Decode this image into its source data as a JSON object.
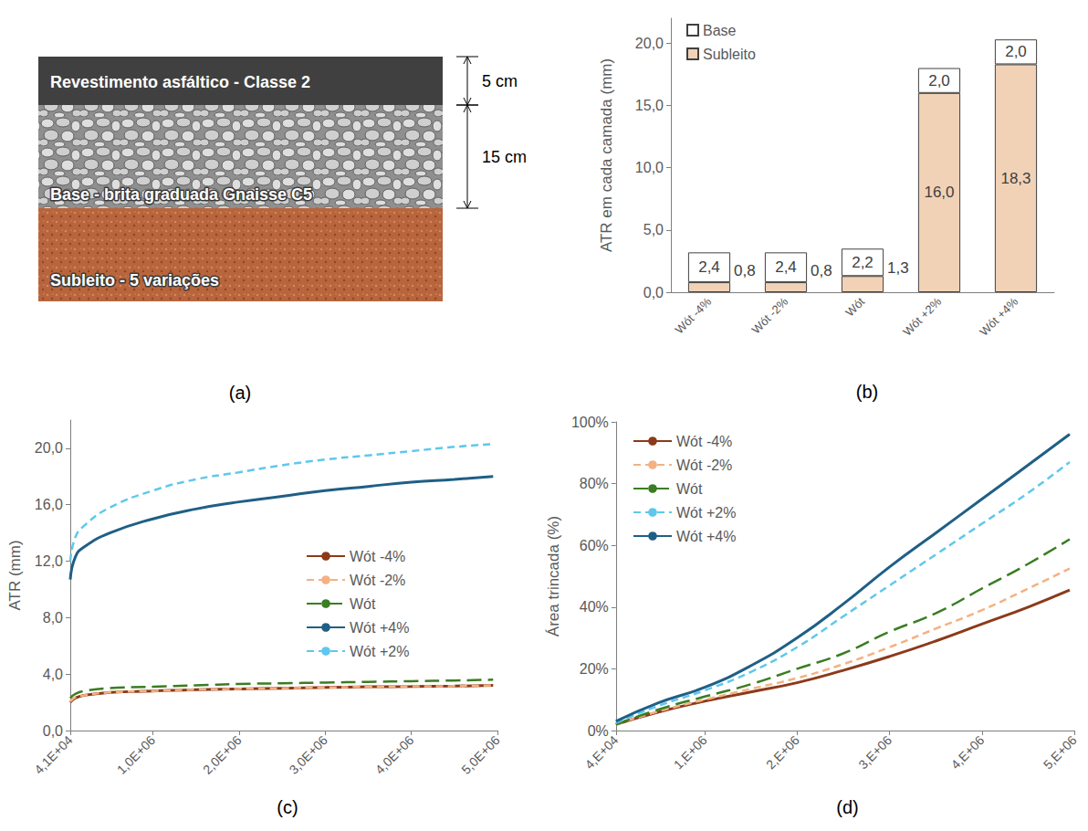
{
  "diagram": {
    "label": "(a)",
    "layers": [
      {
        "name": "Revestimento asfáltico - Classe 2",
        "thickness": "5 cm"
      },
      {
        "name": "Base - brita graduada Gnaisse C5",
        "thickness": "15 cm"
      },
      {
        "name": "Subleito - 5 variações"
      }
    ]
  },
  "chart_data": [
    {
      "type": "bar",
      "title": "(b)",
      "y_label": "ATR em cada camada (mm)",
      "categories": [
        "Wót -4%",
        "Wót -2%",
        "Wót",
        "Wót +2%",
        "Wót +4%"
      ],
      "stacked": true,
      "data_labels": true,
      "legend": "upper left",
      "grid": false,
      "ylim": [
        0,
        22
      ],
      "yticks": [
        {
          "value": 0,
          "label": "0,0"
        },
        {
          "value": 5,
          "label": "5,0"
        },
        {
          "value": 10,
          "label": "10,0"
        },
        {
          "value": 15,
          "label": "15,0"
        },
        {
          "value": 20,
          "label": "20,0"
        }
      ],
      "series": [
        {
          "name": "Subleito",
          "color": "#f2d2b6",
          "values": [
            0.8,
            0.8,
            1.3,
            16.0,
            18.3
          ],
          "value_labels": [
            "0,8",
            "0,8",
            "1,3",
            "16,0",
            "18,3"
          ]
        },
        {
          "name": "Base",
          "color": "#ffffff",
          "values": [
            2.4,
            2.4,
            2.2,
            2.0,
            2.0
          ],
          "value_labels": [
            "2,4",
            "2,4",
            "2,2",
            "2,0",
            "2,0"
          ]
        }
      ]
    },
    {
      "type": "line",
      "title": "(c)",
      "y_label": "ATR (mm)",
      "legend": "center right",
      "grid": false,
      "x": [
        41000,
        100000,
        200000,
        500000,
        1000000,
        1500000,
        2000000,
        2500000,
        3000000,
        3500000,
        4000000,
        4500000,
        4950000
      ],
      "xlim": [
        41000,
        5000000
      ],
      "xticks": [
        {
          "value": 41000,
          "label": "4,1E+04"
        },
        {
          "value": 1000000,
          "label": "1,0E+06"
        },
        {
          "value": 2000000,
          "label": "2,0E+06"
        },
        {
          "value": 3000000,
          "label": "3,0E+06"
        },
        {
          "value": 4000000,
          "label": "4,0E+06"
        },
        {
          "value": 5000000,
          "label": "5,0E+06"
        }
      ],
      "ylim": [
        0,
        22
      ],
      "yticks": [
        {
          "value": 0,
          "label": "0,0"
        },
        {
          "value": 4,
          "label": "4,0"
        },
        {
          "value": 8,
          "label": "8,0"
        },
        {
          "value": 12,
          "label": "12,0"
        },
        {
          "value": 16,
          "label": "16,0"
        },
        {
          "value": 20,
          "label": "20,0"
        }
      ],
      "series": [
        {
          "name": "Wót -4%",
          "color": "#8b3a1a",
          "line_style": "solid",
          "values": [
            2.0,
            2.3,
            2.5,
            2.7,
            2.8,
            2.9,
            2.95,
            3.0,
            3.05,
            3.1,
            3.12,
            3.15,
            3.2
          ]
        },
        {
          "name": "Wót -2%",
          "color": "#f4b183",
          "line_style": "dashed",
          "values": [
            2.05,
            2.35,
            2.5,
            2.7,
            2.8,
            2.9,
            2.95,
            3.0,
            3.05,
            3.1,
            3.13,
            3.15,
            3.2
          ]
        },
        {
          "name": "Wót",
          "color": "#3a7d22",
          "line_style": "longdash",
          "values": [
            2.3,
            2.6,
            2.8,
            3.0,
            3.1,
            3.2,
            3.3,
            3.35,
            3.4,
            3.45,
            3.5,
            3.55,
            3.6
          ]
        },
        {
          "name": "Wót +4%",
          "color": "#1f5f86",
          "line_style": "solid",
          "values": [
            10.7,
            12.3,
            13.0,
            14.0,
            15.0,
            15.7,
            16.2,
            16.6,
            17.0,
            17.3,
            17.6,
            17.8,
            18.0
          ]
        },
        {
          "name": "Wót +2%",
          "color": "#5ec8ec",
          "line_style": "dashed",
          "values": [
            12.0,
            13.7,
            14.5,
            15.8,
            17.0,
            17.8,
            18.3,
            18.8,
            19.2,
            19.5,
            19.8,
            20.1,
            20.3
          ]
        }
      ]
    },
    {
      "type": "line",
      "title": "(d)",
      "y_label": "Área trincada (%)",
      "legend": "upper left",
      "grid": false,
      "x": [
        40000,
        500000,
        1000000,
        1500000,
        2000000,
        2500000,
        3000000,
        3500000,
        4000000,
        4500000,
        4950000
      ],
      "xlim": [
        40000,
        5000000
      ],
      "xticks": [
        {
          "value": 40000,
          "label": "4,E+04"
        },
        {
          "value": 1000000,
          "label": "1,E+06"
        },
        {
          "value": 2000000,
          "label": "2,E+06"
        },
        {
          "value": 3000000,
          "label": "3,E+06"
        },
        {
          "value": 4000000,
          "label": "4,E+06"
        },
        {
          "value": 5000000,
          "label": "5,E+06"
        }
      ],
      "ylim": [
        0,
        100
      ],
      "yticks": [
        {
          "value": 0,
          "label": "0%"
        },
        {
          "value": 20,
          "label": "20%"
        },
        {
          "value": 40,
          "label": "40%"
        },
        {
          "value": 60,
          "label": "60%"
        },
        {
          "value": 80,
          "label": "80%"
        },
        {
          "value": 100,
          "label": "100%"
        }
      ],
      "series": [
        {
          "name": "Wót -4%",
          "color": "#8b3a1a",
          "line_style": "solid",
          "values": [
            2,
            6,
            9.5,
            12.5,
            15.5,
            19.5,
            24,
            29,
            34.5,
            40,
            45.5
          ]
        },
        {
          "name": "Wót -2%",
          "color": "#f4b183",
          "line_style": "dashed",
          "values": [
            2,
            6.2,
            10,
            13.5,
            17,
            21.5,
            27,
            33,
            39,
            46,
            52.5
          ]
        },
        {
          "name": "Wót",
          "color": "#3a7d22",
          "line_style": "longdash",
          "values": [
            2,
            6.8,
            11,
            15,
            20,
            25,
            32,
            38,
            46,
            54,
            62
          ]
        },
        {
          "name": "Wót +2%",
          "color": "#5ec8ec",
          "line_style": "dashed",
          "values": [
            2.5,
            8,
            13,
            19,
            27,
            37,
            47,
            57,
            67,
            77,
            87
          ]
        },
        {
          "name": "Wót +4%",
          "color": "#1f5f86",
          "line_style": "solid",
          "values": [
            3,
            9,
            14,
            21,
            30,
            41,
            53,
            64,
            75,
            86,
            96
          ]
        }
      ]
    }
  ]
}
